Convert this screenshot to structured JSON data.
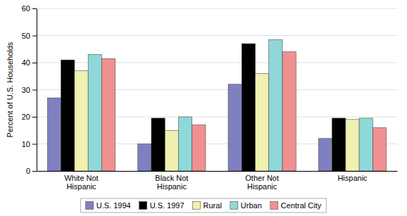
{
  "chart_data": {
    "type": "bar",
    "categories": [
      "White Not\nHispanic",
      "Black Not\nHispanic",
      "Other Not\nHispanic",
      "Hispanic"
    ],
    "series": [
      {
        "name": "U.S. 1994",
        "color": "#8080c0",
        "values": [
          27,
          10,
          32,
          12
        ]
      },
      {
        "name": "U.S. 1997",
        "color": "#000000",
        "values": [
          41,
          19.5,
          47,
          19.5
        ]
      },
      {
        "name": "Rural",
        "color": "#f0f0b0",
        "values": [
          37,
          15,
          36,
          19
        ]
      },
      {
        "name": "Urban",
        "color": "#90d8d8",
        "values": [
          43,
          20,
          48.5,
          19.5
        ]
      },
      {
        "name": "Central City",
        "color": "#f09090",
        "values": [
          41.5,
          17,
          44,
          16
        ]
      }
    ],
    "ylabel": "Percent of U.S. Households",
    "ylim": [
      0,
      60
    ],
    "yticks": [
      0,
      10,
      20,
      30,
      40,
      50,
      60
    ],
    "grid": true,
    "legend": "bottom"
  }
}
